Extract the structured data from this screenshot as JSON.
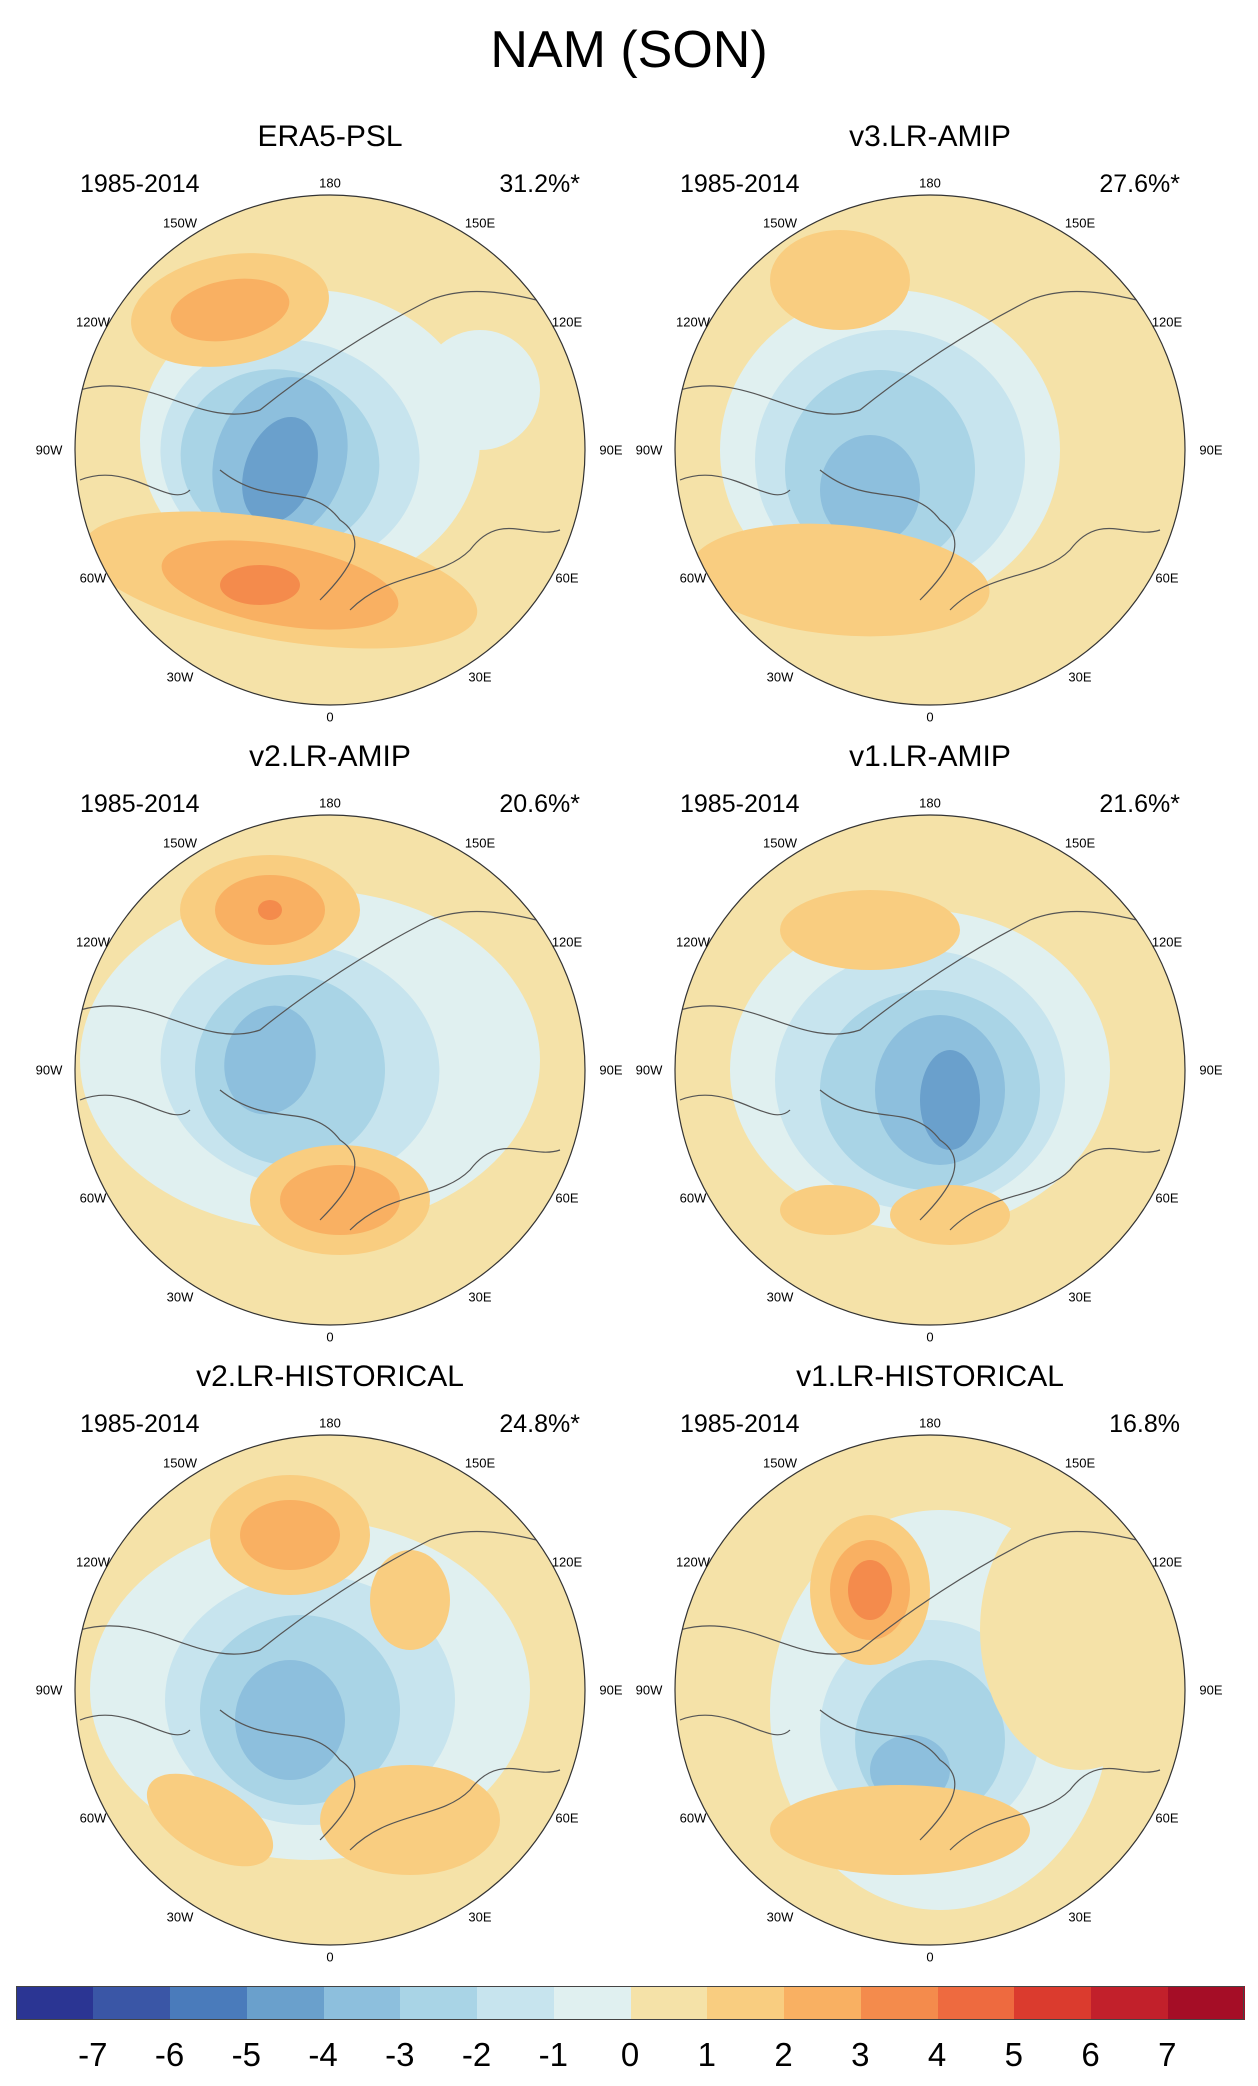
{
  "title": "NAM (SON)",
  "panels": [
    {
      "title": "ERA5-PSL",
      "period": "1985-2014",
      "variance": "31.2%*"
    },
    {
      "title": "v3.LR-AMIP",
      "period": "1985-2014",
      "variance": "27.6%*"
    },
    {
      "title": "v2.LR-AMIP",
      "period": "1985-2014",
      "variance": "20.6%*"
    },
    {
      "title": "v1.LR-AMIP",
      "period": "1985-2014",
      "variance": "21.6%*"
    },
    {
      "title": "v2.LR-HISTORICAL",
      "period": "1985-2014",
      "variance": "24.8%*"
    },
    {
      "title": "v1.LR-HISTORICAL",
      "period": "1985-2014",
      "variance": "16.8%"
    }
  ],
  "longitude_labels": {
    "top": "180",
    "bottom": "0",
    "left": "90W",
    "right": "90E",
    "upper_left": "150W",
    "upper_right": "150E",
    "left_upper": "120W",
    "right_upper": "120E",
    "left_lower": "60W",
    "right_lower": "60E",
    "lower_left": "30W",
    "lower_right": "30E"
  },
  "colorbar": {
    "labels": [
      "-7",
      "-6",
      "-5",
      "-4",
      "-3",
      "-2",
      "-1",
      "0",
      "1",
      "2",
      "3",
      "4",
      "5",
      "6",
      "7"
    ],
    "colors": [
      "#2b3593",
      "#3a56a6",
      "#4a7bbb",
      "#6aa0cc",
      "#8dbfdd",
      "#a9d4e6",
      "#c7e4ee",
      "#e0f0f0",
      "#f5e2a8",
      "#f9cd80",
      "#f9b062",
      "#f48b4c",
      "#ee6a3f",
      "#db3b2e",
      "#c2202b",
      "#a50d26"
    ]
  }
}
